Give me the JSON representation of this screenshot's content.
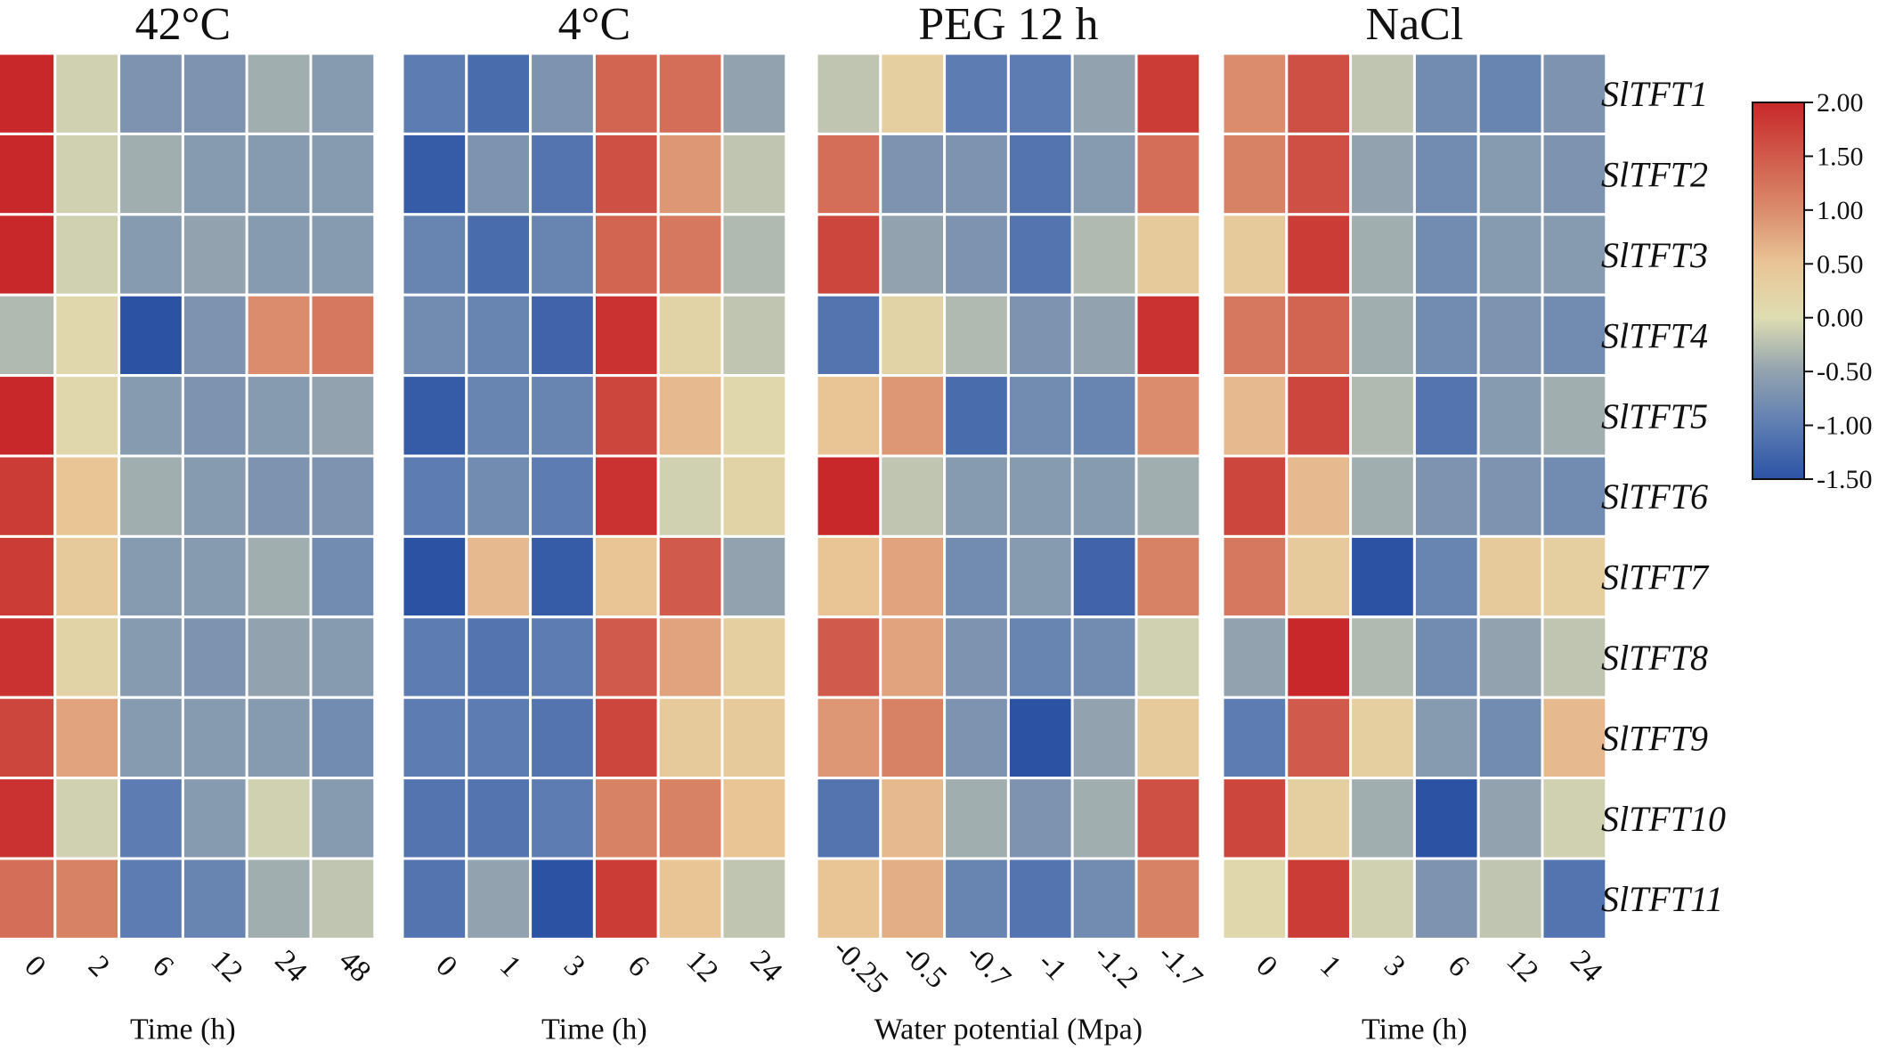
{
  "chart_data": {
    "type": "heatmap",
    "rows": [
      "SlTFT1",
      "SlTFT2",
      "SlTFT3",
      "SlTFT4",
      "SlTFT5",
      "SlTFT6",
      "SlTFT7",
      "SlTFT8",
      "SlTFT9",
      "SlTFT10",
      "SlTFT11"
    ],
    "colorbar": {
      "ticks": [
        "2.00",
        "1.50",
        "1.00",
        "0.50",
        "0.00",
        "-0.50",
        "-1.00",
        "-1.50"
      ],
      "range": [
        -1.5,
        2.0
      ],
      "colors": {
        "min": "#2c52a4",
        "mid": "#e9e6b0",
        "max": "#c8282a"
      }
    },
    "panels": [
      {
        "title": "42°C",
        "xlabel": "Time (h)",
        "columns": [
          "0",
          "2",
          "6",
          "12",
          "24",
          "48"
        ],
        "values": [
          [
            2.0,
            -0.1,
            -0.7,
            -0.7,
            -0.4,
            -0.6
          ],
          [
            2.0,
            -0.1,
            -0.4,
            -0.6,
            -0.6,
            -0.6
          ],
          [
            2.0,
            -0.1,
            -0.6,
            -0.5,
            -0.6,
            -0.6
          ],
          [
            -0.3,
            0.1,
            -1.5,
            -0.7,
            1.0,
            1.2
          ],
          [
            2.0,
            0.1,
            -0.6,
            -0.7,
            -0.6,
            -0.5
          ],
          [
            1.8,
            0.5,
            -0.4,
            -0.6,
            -0.7,
            -0.7
          ],
          [
            1.8,
            0.4,
            -0.6,
            -0.6,
            -0.4,
            -0.8
          ],
          [
            1.9,
            0.2,
            -0.6,
            -0.7,
            -0.5,
            -0.6
          ],
          [
            1.7,
            0.8,
            -0.6,
            -0.6,
            -0.6,
            -0.8
          ],
          [
            1.9,
            -0.1,
            -1.0,
            -0.6,
            -0.1,
            -0.6
          ],
          [
            1.3,
            1.1,
            -1.0,
            -0.9,
            -0.4,
            -0.2
          ]
        ]
      },
      {
        "title": "4°C",
        "xlabel": "Time (h)",
        "columns": [
          "0",
          "1",
          "3",
          "6",
          "12",
          "24"
        ],
        "values": [
          [
            -1.0,
            -1.2,
            -0.7,
            1.4,
            1.3,
            -0.5
          ],
          [
            -1.4,
            -0.7,
            -1.1,
            1.6,
            0.9,
            -0.2
          ],
          [
            -0.9,
            -1.2,
            -0.9,
            1.4,
            1.2,
            -0.3
          ],
          [
            -0.8,
            -0.9,
            -1.3,
            1.9,
            0.2,
            -0.2
          ],
          [
            -1.4,
            -0.9,
            -0.9,
            1.7,
            0.6,
            0.1
          ],
          [
            -1.0,
            -0.8,
            -1.0,
            1.9,
            -0.1,
            0.2
          ],
          [
            -1.5,
            0.6,
            -1.4,
            0.5,
            1.5,
            -0.5
          ],
          [
            -1.0,
            -1.1,
            -1.0,
            1.5,
            0.8,
            0.3
          ],
          [
            -1.0,
            -1.0,
            -1.1,
            1.7,
            0.4,
            0.4
          ],
          [
            -1.1,
            -1.1,
            -1.0,
            1.1,
            1.1,
            0.5
          ],
          [
            -1.1,
            -0.5,
            -1.5,
            1.8,
            0.5,
            -0.2
          ]
        ]
      },
      {
        "title": "PEG 12 h",
        "xlabel": "Water potential (Mpa)",
        "columns": [
          "-0.25",
          "-0.5",
          "-0.7",
          "-1",
          "-1.2",
          "-1.7"
        ],
        "values": [
          [
            -0.2,
            0.3,
            -1.0,
            -1.0,
            -0.5,
            1.8
          ],
          [
            1.3,
            -0.7,
            -0.7,
            -1.1,
            -0.6,
            1.3
          ],
          [
            1.7,
            -0.5,
            -0.7,
            -1.1,
            -0.3,
            0.4
          ],
          [
            -1.1,
            0.2,
            -0.3,
            -0.7,
            -0.5,
            1.9
          ],
          [
            0.5,
            0.9,
            -1.2,
            -0.8,
            -0.9,
            1.0
          ],
          [
            2.0,
            -0.2,
            -0.6,
            -0.6,
            -0.6,
            -0.4
          ],
          [
            0.5,
            0.8,
            -0.8,
            -0.6,
            -1.3,
            1.1
          ],
          [
            1.5,
            0.8,
            -0.7,
            -0.9,
            -0.8,
            -0.1
          ],
          [
            0.9,
            1.1,
            -0.7,
            -1.5,
            -0.5,
            0.4
          ],
          [
            -1.1,
            0.6,
            -0.4,
            -0.7,
            -0.4,
            1.6
          ],
          [
            0.5,
            0.7,
            -0.9,
            -1.1,
            -0.8,
            1.1
          ]
        ]
      },
      {
        "title": "NaCl",
        "xlabel": "Time (h)",
        "columns": [
          "0",
          "1",
          "3",
          "6",
          "12",
          "24"
        ],
        "values": [
          [
            1.0,
            1.6,
            -0.2,
            -0.8,
            -0.9,
            -0.7
          ],
          [
            1.1,
            1.6,
            -0.5,
            -0.8,
            -0.6,
            -0.7
          ],
          [
            0.4,
            1.8,
            -0.4,
            -0.8,
            -0.6,
            -0.6
          ],
          [
            1.2,
            1.4,
            -0.4,
            -0.8,
            -0.7,
            -0.8
          ],
          [
            0.6,
            1.7,
            -0.3,
            -1.1,
            -0.6,
            -0.4
          ],
          [
            1.7,
            0.6,
            -0.4,
            -0.7,
            -0.7,
            -0.8
          ],
          [
            1.2,
            0.4,
            -1.5,
            -0.9,
            0.4,
            0.3
          ],
          [
            -0.5,
            2.0,
            -0.3,
            -0.8,
            -0.5,
            -0.2
          ],
          [
            -1.0,
            1.5,
            0.3,
            -0.6,
            -0.8,
            0.6
          ],
          [
            1.7,
            0.3,
            -0.4,
            -1.5,
            -0.5,
            -0.1
          ],
          [
            0.1,
            1.8,
            -0.1,
            -0.7,
            -0.2,
            -1.1
          ]
        ]
      }
    ]
  }
}
